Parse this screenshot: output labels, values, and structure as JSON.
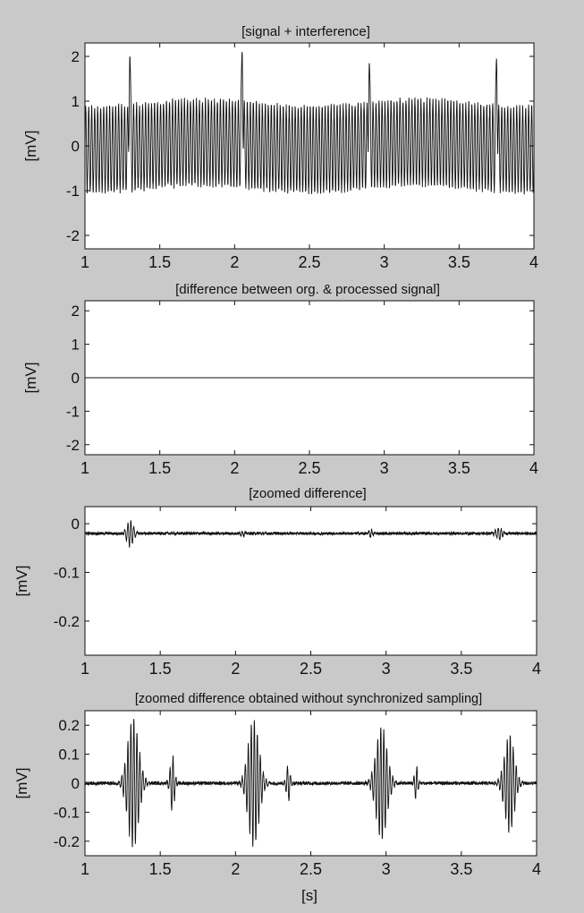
{
  "figure": {
    "background": "#c9c9c9",
    "plot_background": "#ffffff",
    "line_color": "#111111"
  },
  "chart_data": [
    {
      "type": "line",
      "title": "[signal + interference]",
      "xlabel": "",
      "ylabel": "[mV]",
      "xlim": [
        1,
        4
      ],
      "ylim": [
        -2.3,
        2.3
      ],
      "xticks": [
        1,
        1.5,
        2,
        2.5,
        3,
        3.5,
        4
      ],
      "xtick_labels": [
        "1",
        "1.5",
        "2",
        "2.5",
        "3",
        "3.5",
        "4"
      ],
      "yticks": [
        2,
        1,
        0,
        -1,
        -2
      ],
      "ytick_labels": [
        "2",
        "1",
        "0",
        "-1",
        "-2"
      ],
      "grid": false,
      "signal": {
        "interference_amplitude": 0.95,
        "interference_frequency_hz": 50,
        "baseline_wander_amplitude": 0.08,
        "qrs_peaks": [
          {
            "x": 1.3,
            "y": 2.0
          },
          {
            "x": 2.05,
            "y": 2.1
          },
          {
            "x": 2.9,
            "y": 1.85
          },
          {
            "x": 3.75,
            "y": 1.95
          }
        ]
      }
    },
    {
      "type": "line",
      "title": "[difference between org. & processed signal]",
      "xlabel": "",
      "ylabel": "[mV]",
      "xlim": [
        1,
        4
      ],
      "ylim": [
        -2.3,
        2.3
      ],
      "xticks": [
        1,
        1.5,
        2,
        2.5,
        3,
        3.5,
        4
      ],
      "xtick_labels": [
        "1",
        "1.5",
        "2",
        "2.5",
        "3",
        "3.5",
        "4"
      ],
      "yticks": [
        2,
        1,
        0,
        -1,
        -2
      ],
      "ytick_labels": [
        "2",
        "1",
        "0",
        "-1",
        "-2"
      ],
      "grid": false,
      "signal": {
        "constant_value": 0
      }
    },
    {
      "type": "line",
      "title": "[zoomed difference]",
      "xlabel": "",
      "ylabel": "[mV]",
      "xlim": [
        1,
        4
      ],
      "ylim": [
        -0.27,
        0.035
      ],
      "xticks": [
        1,
        1.5,
        2,
        2.5,
        3,
        3.5,
        4
      ],
      "xtick_labels": [
        "1",
        "1.5",
        "2",
        "2.5",
        "3",
        "3.5",
        "4"
      ],
      "yticks": [
        0,
        -0.1,
        -0.2
      ],
      "ytick_labels": [
        "0",
        "-0.1",
        "-0.2"
      ],
      "grid": false,
      "signal": {
        "baseline": -0.02,
        "noise_amplitude": 0.003,
        "bursts": [
          {
            "x": 1.3,
            "amplitude": 0.028,
            "width": 0.03
          },
          {
            "x": 2.05,
            "amplitude": 0.005,
            "width": 0.02
          },
          {
            "x": 2.9,
            "amplitude": 0.008,
            "width": 0.02
          },
          {
            "x": 3.75,
            "amplitude": 0.012,
            "width": 0.03
          }
        ]
      }
    },
    {
      "type": "line",
      "title": "[zoomed difference obtained without synchronized sampling]",
      "xlabel": "[s]",
      "ylabel": "[mV]",
      "xlim": [
        1,
        4
      ],
      "ylim": [
        -0.25,
        0.25
      ],
      "xticks": [
        1,
        1.5,
        2,
        2.5,
        3,
        3.5,
        4
      ],
      "xtick_labels": [
        "1",
        "1.5",
        "2",
        "2.5",
        "3",
        "3.5",
        "4"
      ],
      "yticks": [
        0.2,
        0.1,
        0,
        -0.1,
        -0.2
      ],
      "ytick_labels": [
        "0.2",
        "0.1",
        "0",
        "-0.1",
        "-0.2"
      ],
      "grid": false,
      "signal": {
        "baseline": 0,
        "noise_amplitude": 0.006,
        "bursts": [
          {
            "x": 1.32,
            "amplitude": 0.23,
            "width": 0.05
          },
          {
            "x": 1.58,
            "amplitude": 0.1,
            "width": 0.02
          },
          {
            "x": 2.12,
            "amplitude": 0.22,
            "width": 0.05
          },
          {
            "x": 2.35,
            "amplitude": 0.07,
            "width": 0.015
          },
          {
            "x": 2.97,
            "amplitude": 0.2,
            "width": 0.05
          },
          {
            "x": 3.2,
            "amplitude": 0.06,
            "width": 0.015
          },
          {
            "x": 3.82,
            "amplitude": 0.17,
            "width": 0.045
          }
        ]
      }
    }
  ]
}
